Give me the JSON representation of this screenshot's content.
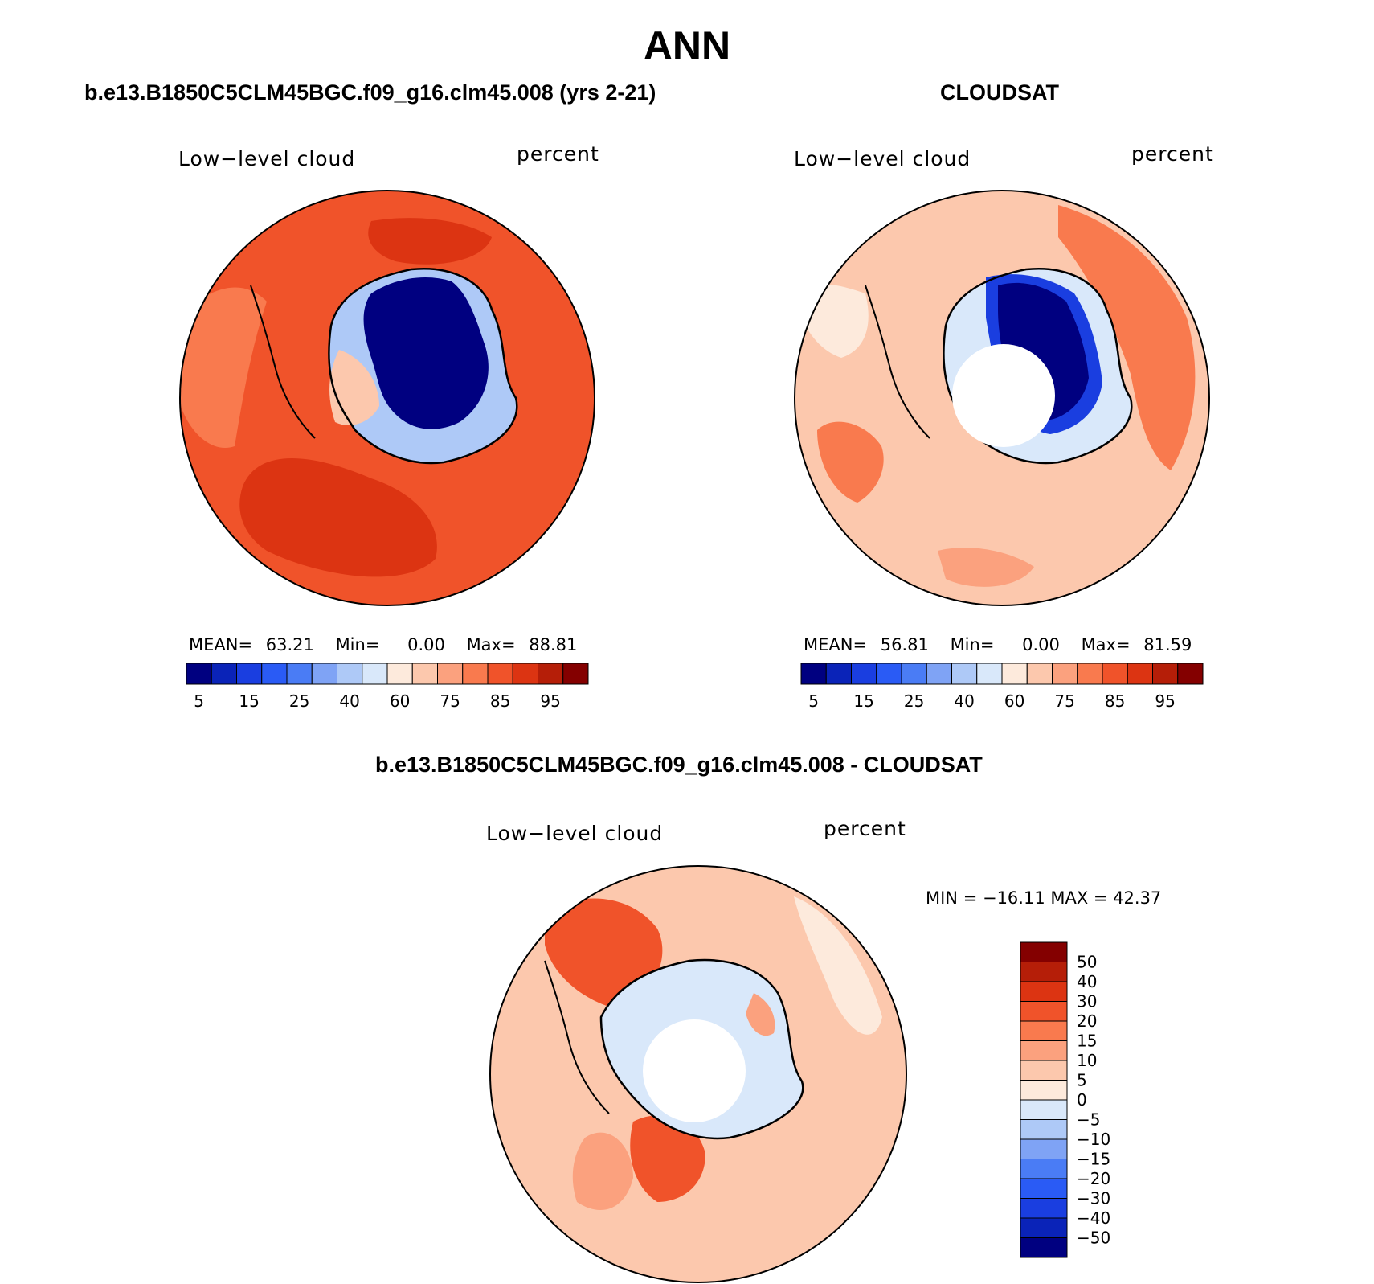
{
  "title": "ANN",
  "panels": {
    "model": {
      "title": "b.e13.B1850C5CLM45BGC.f09_g16.clm45.008 (yrs 2-21)",
      "variable": "Low−level cloud",
      "units": "percent",
      "stats": {
        "mean_label": "MEAN=",
        "mean": "63.21",
        "min_label": "Min=",
        "min": "0.00",
        "max_label": "Max=",
        "max": "88.81"
      }
    },
    "obs": {
      "title": "CLOUDSAT",
      "variable": "Low−level cloud",
      "units": "percent",
      "stats": {
        "mean_label": "MEAN=",
        "mean": "56.81",
        "min_label": "Min=",
        "min": "0.00",
        "max_label": "Max=",
        "max": "81.59"
      }
    },
    "diff": {
      "title": "b.e13.B1850C5CLM45BGC.f09_g16.clm45.008 - CLOUDSAT",
      "variable": "Low−level cloud",
      "units": "percent",
      "minmax": "MIN = −16.11 MAX =   42.37"
    }
  },
  "colorbar_field": {
    "colors": [
      "#000080",
      "#0a23b8",
      "#1a3ee0",
      "#2a5bf5",
      "#4a7cf5",
      "#7fa3f5",
      "#aec9f7",
      "#d9e8fa",
      "#fdeadc",
      "#fcc8ad",
      "#fba17e",
      "#f97a4e",
      "#f0532a",
      "#dc3412",
      "#b51e08",
      "#840000"
    ],
    "tick_labels": [
      "5",
      "15",
      "25",
      "40",
      "60",
      "75",
      "85",
      "95"
    ]
  },
  "colorbar_diff": {
    "colors": [
      "#840000",
      "#b51e08",
      "#dc3412",
      "#f0532a",
      "#f97a4e",
      "#fba17e",
      "#fcc8ad",
      "#fdeadc",
      "#d9e8fa",
      "#aec9f7",
      "#7fa3f5",
      "#4a7cf5",
      "#2a5bf5",
      "#1a3ee0",
      "#0a23b8",
      "#000080"
    ],
    "tick_labels": [
      "50",
      "40",
      "30",
      "20",
      "15",
      "10",
      "5",
      "0",
      "−5",
      "−10",
      "−15",
      "−20",
      "−30",
      "−40",
      "−50"
    ]
  },
  "colors": {
    "ocean_model": "#f0532a",
    "ocean_obs": "#fcc8ad",
    "ocean_diff": "#fcc8ad",
    "interior_low": "#000080",
    "missing": "#ffffff"
  }
}
